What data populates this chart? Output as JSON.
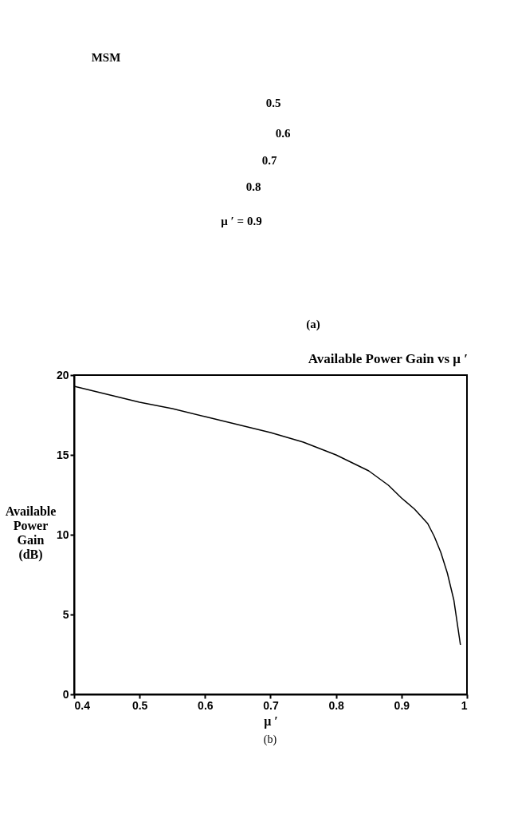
{
  "chart_data": [
    {
      "type": "other",
      "annotations": [
        "MSM",
        "0.5",
        "0.6",
        "0.7",
        "0.8",
        "μ ′ = 0.9",
        "(a)"
      ]
    },
    {
      "type": "line",
      "title": "Available Power Gain vs μ ′",
      "xlabel": "μ ′",
      "ylabel": "Available Power Gain (dB)",
      "x": [
        0.4,
        0.45,
        0.5,
        0.55,
        0.6,
        0.65,
        0.7,
        0.75,
        0.8,
        0.85,
        0.88,
        0.9,
        0.92,
        0.94,
        0.95,
        0.96,
        0.97,
        0.98,
        0.99
      ],
      "series": [
        {
          "color": "#000000",
          "values": [
            19.3,
            18.8,
            18.3,
            17.9,
            17.4,
            16.9,
            16.4,
            15.8,
            15.0,
            14.0,
            13.1,
            12.3,
            11.6,
            10.7,
            9.9,
            8.9,
            7.6,
            5.9,
            3.1
          ]
        }
      ],
      "xlim": [
        0.4,
        1.0
      ],
      "xticks": [
        0.4,
        0.5,
        0.6,
        0.7,
        0.8,
        0.9,
        {
          "value": 1.0,
          "label": "1"
        }
      ],
      "ylim": [
        0,
        20
      ],
      "yticks": [
        0,
        5,
        10,
        15,
        20
      ],
      "grid": false,
      "marker": "none",
      "line_style": "solid",
      "annotations": [
        "(b)"
      ]
    }
  ]
}
